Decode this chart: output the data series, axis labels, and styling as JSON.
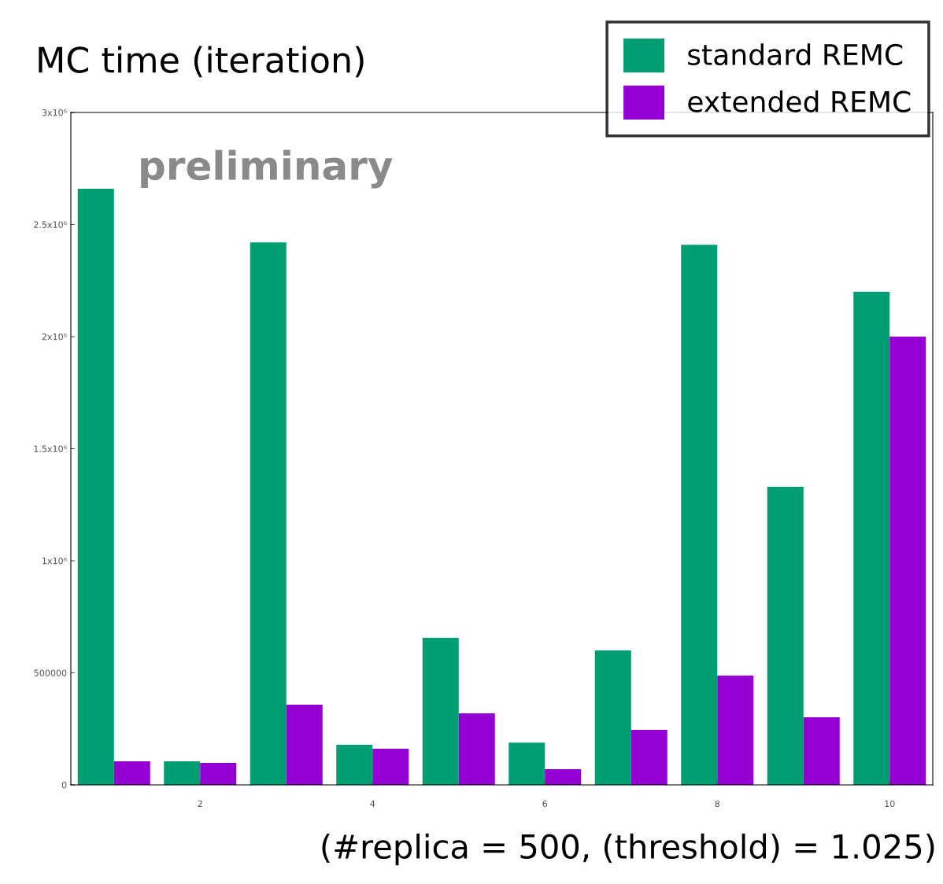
{
  "chart_data": {
    "type": "bar",
    "title": "MC time (iteration)",
    "x": [
      1,
      2,
      3,
      4,
      5,
      6,
      7,
      8,
      9,
      10
    ],
    "series": [
      {
        "name": "standard REMC",
        "color": "#009e73",
        "values": [
          2660000,
          105000,
          2420000,
          179000,
          656000,
          189000,
          600000,
          2410000,
          1330000,
          2200000
        ]
      },
      {
        "name": "extended REMC",
        "color": "#9400d3",
        "values": [
          105000,
          98000,
          358000,
          161000,
          319000,
          70000,
          246000,
          488000,
          302000,
          2000000
        ]
      }
    ],
    "xlim": [
      0.5,
      10.5
    ],
    "xticks": [
      2,
      4,
      6,
      8,
      10
    ],
    "ylim": [
      0,
      3000000
    ],
    "yticks": [
      0,
      {
        "value": 500000,
        "label": "500000"
      },
      {
        "value": 1000000,
        "label": "1x10⁶"
      },
      {
        "value": 1500000,
        "label": "1.5x10⁶"
      },
      {
        "value": 2000000,
        "label": "2x10⁶"
      },
      {
        "value": 2500000,
        "label": "2.5x10⁶"
      },
      {
        "value": 3000000,
        "label": "3x10⁶"
      }
    ],
    "grid": false,
    "legend": "top right",
    "annotations": [
      "preliminary",
      "(#replica = 500, (threshold) = 1.025)"
    ]
  }
}
